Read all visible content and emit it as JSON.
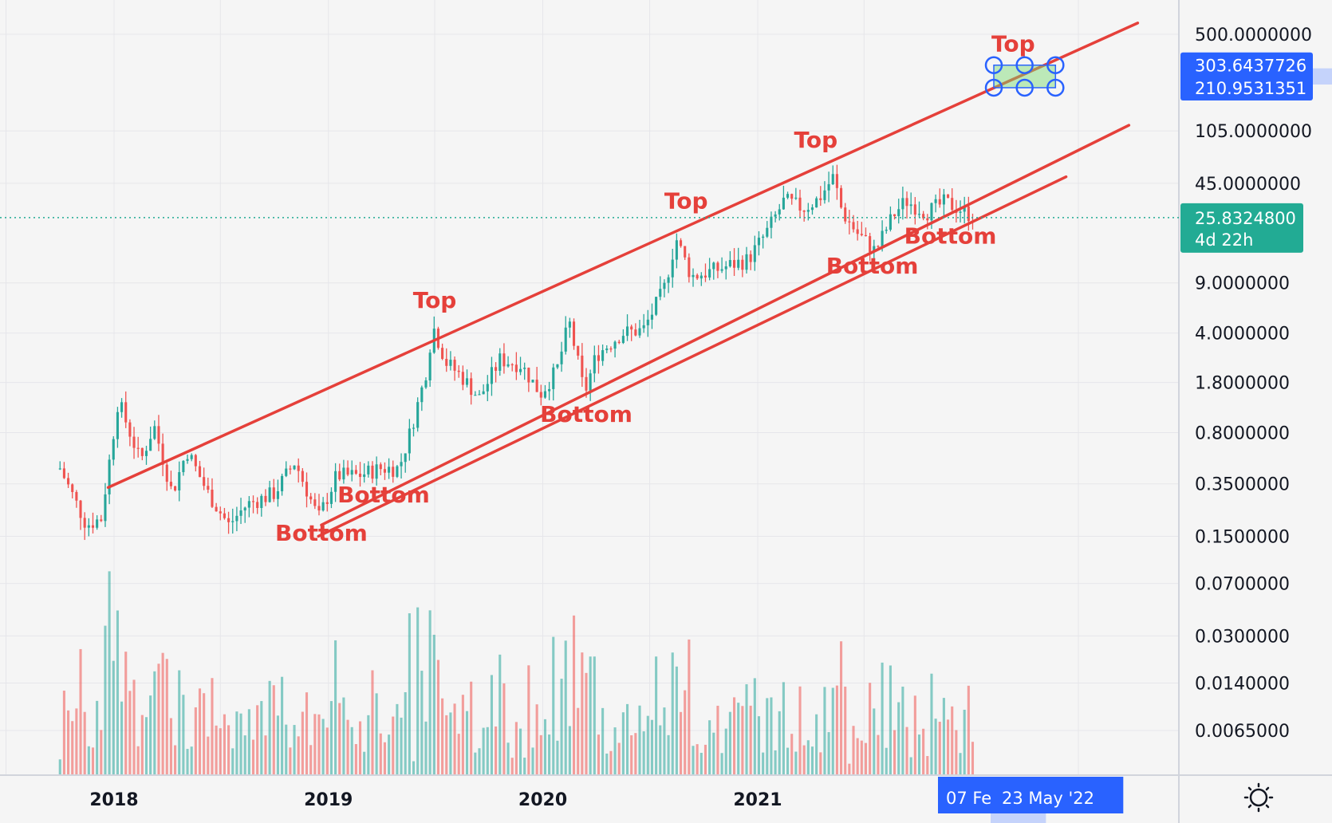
{
  "chart_data": {
    "type": "candlestick",
    "scale": "log",
    "grid": true,
    "x_ticks": [
      "2018",
      "2019",
      "2020",
      "2021"
    ],
    "y_ticks": [
      "500.0000000",
      "105.0000000",
      "45.0000000",
      "9.0000000",
      "4.0000000",
      "1.8000000",
      "0.8000000",
      "0.3500000",
      "0.1500000",
      "0.0700000",
      "0.0300000",
      "0.0140000",
      "0.0065000"
    ],
    "y_tick_values": [
      500,
      105,
      45,
      9,
      4,
      1.8,
      0.8,
      0.35,
      0.15,
      0.07,
      0.03,
      0.014,
      0.0065
    ],
    "current_price": "25.8324800",
    "countdown": "4d 22h",
    "range_badges": [
      "303.6437726",
      "210.9531351"
    ],
    "range_values": [
      303.6437726,
      210.9531351
    ],
    "time_badges": [
      "07 Fe",
      "23 May '22"
    ],
    "price_path": [
      [
        "2017-10-01",
        0.45
      ],
      [
        "2017-11-15",
        0.18
      ],
      [
        "2017-12-10",
        0.2
      ],
      [
        "2018-01-08",
        1.35
      ],
      [
        "2018-02-15",
        0.5
      ],
      [
        "2018-03-10",
        0.9
      ],
      [
        "2018-04-10",
        0.3
      ],
      [
        "2018-05-05",
        0.6
      ],
      [
        "2018-06-10",
        0.3
      ],
      [
        "2018-07-15",
        0.18
      ],
      [
        "2018-08-15",
        0.25
      ],
      [
        "2018-10-01",
        0.3
      ],
      [
        "2018-11-05",
        0.5
      ],
      [
        "2018-12-15",
        0.2
      ],
      [
        "2019-01-15",
        0.4
      ],
      [
        "2019-02-20",
        0.4
      ],
      [
        "2019-04-01",
        0.45
      ],
      [
        "2019-05-01",
        0.45
      ],
      [
        "2019-05-20",
        0.8
      ],
      [
        "2019-06-15",
        2.0
      ],
      [
        "2019-06-28",
        4.5
      ],
      [
        "2019-07-20",
        2.5
      ],
      [
        "2019-08-15",
        2.0
      ],
      [
        "2019-09-15",
        1.4
      ],
      [
        "2019-10-20",
        2.6
      ],
      [
        "2019-11-25",
        2.4
      ],
      [
        "2019-12-28",
        1.5
      ],
      [
        "2020-01-25",
        2.2
      ],
      [
        "2020-02-15",
        4.8
      ],
      [
        "2020-03-12",
        1.5
      ],
      [
        "2020-04-01",
        2.8
      ],
      [
        "2020-05-15",
        4.0
      ],
      [
        "2020-06-20",
        4.2
      ],
      [
        "2020-07-25",
        8.0
      ],
      [
        "2020-08-15",
        18.5
      ],
      [
        "2020-09-10",
        10.0
      ],
      [
        "2020-10-20",
        11.0
      ],
      [
        "2020-11-15",
        12.0
      ],
      [
        "2020-12-15",
        13.0
      ],
      [
        "2021-01-15",
        20.0
      ],
      [
        "2021-02-15",
        34.0
      ],
      [
        "2021-03-20",
        30.0
      ],
      [
        "2021-04-15",
        35.0
      ],
      [
        "2021-05-10",
        50.0
      ],
      [
        "2021-05-25",
        28.0
      ],
      [
        "2021-06-20",
        20.0
      ],
      [
        "2021-07-20",
        15.0
      ],
      [
        "2021-08-20",
        27.0
      ],
      [
        "2021-09-10",
        34.0
      ],
      [
        "2021-10-15",
        28.0
      ],
      [
        "2021-11-15",
        33.0
      ],
      [
        "2021-12-10",
        30.0
      ],
      [
        "2022-01-05",
        25.8
      ]
    ],
    "channel_lines": [
      {
        "from": [
          "2017-12-22",
          0.33
        ],
        "to": [
          "2022-10-10",
          600
        ]
      },
      {
        "from": [
          "2018-12-20",
          0.18
        ],
        "to": [
          "2022-09-25",
          115
        ]
      },
      {
        "from": [
          "2018-12-15",
          0.15
        ],
        "to": [
          "2022-06-10",
          50
        ]
      }
    ],
    "annotations": [
      {
        "text": "Top",
        "date": "2019-07-01",
        "value": 6.0
      },
      {
        "text": "Top",
        "date": "2020-09-01",
        "value": 30.0
      },
      {
        "text": "Top",
        "date": "2021-04-10",
        "value": 80.0
      },
      {
        "text": "Top",
        "date": "2022-03-12",
        "value": 380.0
      },
      {
        "text": "Bottom",
        "date": "2018-12-20",
        "value": 0.14
      },
      {
        "text": "Bottom",
        "date": "2019-04-05",
        "value": 0.26
      },
      {
        "text": "Bottom",
        "date": "2020-03-15",
        "value": 0.95
      },
      {
        "text": "Bottom",
        "date": "2021-07-15",
        "value": 10.5
      },
      {
        "text": "Bottom",
        "date": "2021-11-25",
        "value": 17.0
      }
    ]
  }
}
